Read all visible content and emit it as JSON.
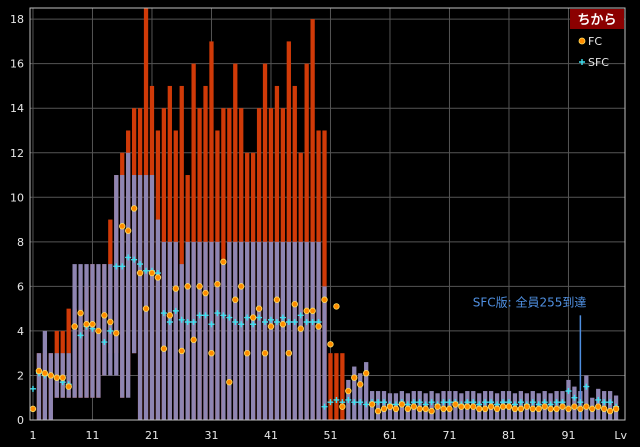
{
  "chart_data": {
    "type": "bar",
    "title": "ちから",
    "xlabel": "Lv",
    "ylabel": "",
    "xlim": [
      1,
      99
    ],
    "ylim": [
      0,
      18.5
    ],
    "x_ticks": [
      1,
      11,
      21,
      31,
      41,
      51,
      61,
      71,
      81,
      91
    ],
    "y_ticks": [
      0,
      2,
      4,
      6,
      8,
      10,
      12,
      14,
      16,
      18
    ],
    "grid": true,
    "legend_position": "top-right",
    "legend": [
      {
        "name": "FC",
        "marker": "circle"
      },
      {
        "name": "SFC",
        "marker": "plus"
      }
    ],
    "annotation": {
      "text": "SFC版: 全員255到達",
      "level": 93
    },
    "colors": {
      "background": "#000000",
      "plot_border": "#c0c0c0",
      "grid": "#555555",
      "fc_bar": "#d03a08",
      "sfc_bar": "#8e85b2",
      "sfc_bar_dark": "#1a4f86",
      "fc_marker_fill": "#ff8c00",
      "fc_marker_edge": "#ffe060",
      "sfc_marker": "#40e0f0",
      "title_bg": "#8b0000",
      "annotation": "#4f8fe0"
    },
    "series": [
      {
        "name": "FC range",
        "levels": [
          2,
          3,
          4,
          5,
          6,
          7,
          8,
          9,
          10,
          11,
          12,
          13,
          14,
          15,
          16,
          17,
          18,
          19,
          20,
          21,
          22,
          23,
          24,
          25,
          26,
          27,
          28,
          29,
          30,
          31,
          32,
          33,
          34,
          35,
          36,
          37,
          38,
          39,
          40,
          41,
          42,
          43,
          44,
          45,
          46,
          47,
          48,
          49,
          50,
          51,
          52,
          53
        ],
        "low": [
          0,
          0,
          0,
          1,
          1,
          1,
          1,
          1,
          1,
          1,
          1,
          2,
          3,
          3,
          1,
          2,
          3,
          0,
          0,
          0,
          0,
          0,
          0,
          0,
          0,
          0,
          0,
          0,
          0,
          0,
          0,
          0,
          0,
          0,
          0,
          0,
          0,
          0,
          0,
          0,
          0,
          0,
          0,
          0,
          0,
          0,
          0,
          0,
          0,
          0,
          0,
          0
        ],
        "high": [
          3,
          3,
          3,
          4,
          4,
          5,
          5,
          5,
          6,
          7,
          6,
          7,
          9,
          11,
          12,
          13,
          14,
          14,
          21,
          15,
          13,
          14,
          15,
          13,
          15,
          11,
          16,
          14,
          15,
          17,
          13,
          14,
          14,
          16,
          14,
          12,
          12,
          14,
          16,
          14,
          15,
          14,
          17,
          15,
          12,
          16,
          18,
          13,
          13,
          3,
          3,
          3
        ]
      },
      {
        "name": "SFC range",
        "levels": [
          2,
          3,
          4,
          5,
          6,
          7,
          8,
          9,
          10,
          11,
          12,
          13,
          14,
          15,
          16,
          17,
          18,
          19,
          20,
          21,
          22,
          23,
          24,
          25,
          26,
          27,
          28,
          29,
          30,
          31,
          32,
          33,
          34,
          35,
          36,
          37,
          38,
          39,
          40,
          41,
          42,
          43,
          44,
          45,
          46,
          47,
          48,
          49,
          50
        ],
        "low": [
          0,
          0,
          0,
          1,
          1,
          1,
          1,
          1,
          1,
          1,
          1,
          2,
          2,
          2,
          1,
          1,
          3,
          0,
          0,
          0,
          0,
          0,
          0,
          0,
          0,
          0,
          0,
          0,
          0,
          0,
          0,
          0,
          0,
          0,
          0,
          0,
          0,
          0,
          0,
          0,
          0,
          0,
          0,
          0,
          0,
          0,
          0,
          0,
          0
        ],
        "high": [
          3,
          4,
          3,
          3,
          3,
          3,
          7,
          7,
          7,
          7,
          7,
          7,
          7,
          11,
          11,
          12,
          11,
          11,
          11,
          11,
          9,
          8,
          8,
          8,
          7,
          8,
          8,
          8,
          8,
          8,
          8,
          7,
          8,
          8,
          8,
          8,
          8,
          8,
          8,
          8,
          8,
          8,
          8,
          8,
          8,
          8,
          8,
          8,
          6
        ]
      },
      {
        "name": "FC",
        "levels": [
          1,
          2,
          3,
          4,
          5,
          6,
          7,
          8,
          9,
          10,
          11,
          12,
          13,
          14,
          15,
          16,
          17,
          18,
          19,
          20,
          21,
          22,
          23,
          24,
          25,
          26,
          27,
          28,
          29,
          30,
          31,
          32,
          33,
          34,
          35,
          36,
          37,
          38,
          39,
          40,
          41,
          42,
          43,
          44,
          45,
          46,
          47,
          48,
          49,
          50,
          51,
          52,
          53,
          54,
          55,
          56,
          57,
          58,
          59,
          60,
          61,
          62,
          63,
          64,
          65,
          66,
          67,
          68,
          69,
          70,
          71,
          72,
          73,
          74,
          75,
          76,
          77,
          78,
          79,
          80,
          81,
          82,
          83,
          84,
          85,
          86,
          87,
          88,
          89,
          90,
          91,
          92,
          93,
          94,
          95,
          96,
          97,
          98,
          99
        ],
        "values": [
          0.5,
          2.2,
          2.1,
          2.0,
          1.9,
          1.9,
          1.5,
          4.2,
          4.8,
          4.3,
          4.3,
          4.0,
          4.7,
          4.4,
          3.9,
          8.7,
          8.5,
          9.5,
          6.6,
          5.0,
          6.6,
          6.4,
          3.2,
          4.7,
          5.9,
          3.1,
          6.0,
          3.6,
          6.0,
          5.7,
          3.0,
          6.1,
          7.1,
          1.7,
          5.4,
          6.0,
          3.0,
          4.6,
          5.0,
          3.0,
          4.2,
          5.4,
          4.3,
          3.0,
          5.2,
          4.1,
          4.9,
          4.9,
          4.2,
          5.4,
          3.4,
          5.1,
          0.6,
          1.3,
          1.9,
          1.6,
          2.1,
          0.7,
          0.4,
          0.5,
          0.6,
          0.5,
          0.7,
          0.5,
          0.6,
          0.5,
          0.5,
          0.4,
          0.6,
          0.5,
          0.5,
          0.7,
          0.6,
          0.6,
          0.6,
          0.5,
          0.5,
          0.6,
          0.5,
          0.6,
          0.6,
          0.5,
          0.5,
          0.6,
          0.5,
          0.5,
          0.6,
          0.5,
          0.5,
          0.6,
          0.5,
          0.6,
          0.5,
          0.6,
          0.5,
          0.6,
          0.5,
          0.4,
          0.5
        ]
      },
      {
        "name": "SFC",
        "levels": [
          1,
          2,
          3,
          4,
          5,
          6,
          7,
          8,
          9,
          10,
          11,
          12,
          13,
          14,
          15,
          16,
          17,
          18,
          19,
          20,
          21,
          22,
          23,
          24,
          25,
          26,
          27,
          28,
          29,
          30,
          31,
          32,
          33,
          34,
          35,
          36,
          37,
          38,
          39,
          40,
          41,
          42,
          43,
          44,
          45,
          46,
          47,
          48,
          49,
          50,
          51,
          52,
          53,
          54,
          55,
          56,
          57,
          58,
          59,
          60,
          61,
          62,
          63,
          64,
          65,
          66,
          67,
          68,
          69,
          70,
          71,
          72,
          73,
          74,
          75,
          76,
          77,
          78,
          79,
          80,
          81,
          82,
          83,
          84,
          85,
          86,
          87,
          88,
          89,
          90,
          91,
          92,
          93,
          94,
          95,
          96,
          97,
          98,
          99
        ],
        "values": [
          1.4,
          2.1,
          2.0,
          2.0,
          1.9,
          1.7,
          1.6,
          4.2,
          3.8,
          4.2,
          4.1,
          4.0,
          3.5,
          4.0,
          6.9,
          6.9,
          7.3,
          7.2,
          7.0,
          6.7,
          6.7,
          6.6,
          4.8,
          4.4,
          4.9,
          4.5,
          4.4,
          4.4,
          4.7,
          4.7,
          4.3,
          4.8,
          4.7,
          4.6,
          4.4,
          4.3,
          4.6,
          4.3,
          4.6,
          4.4,
          4.5,
          4.4,
          4.6,
          4.4,
          4.4,
          4.7,
          4.4,
          4.4,
          4.4,
          0.6,
          0.8,
          0.9,
          0.8,
          0.9,
          0.8,
          0.8,
          0.7,
          0.8,
          0.8,
          0.8,
          0.7,
          0.7,
          0.8,
          0.7,
          0.8,
          0.8,
          0.7,
          0.8,
          0.7,
          0.8,
          0.8,
          0.8,
          0.7,
          0.8,
          0.8,
          0.7,
          0.8,
          0.8,
          0.7,
          0.8,
          0.8,
          0.7,
          0.8,
          0.7,
          0.8,
          0.7,
          0.8,
          0.7,
          0.8,
          0.8,
          1.3,
          1.0,
          0.8,
          1.5,
          0.5,
          0.9,
          0.8,
          0.8,
          0.6
        ]
      }
    ]
  }
}
